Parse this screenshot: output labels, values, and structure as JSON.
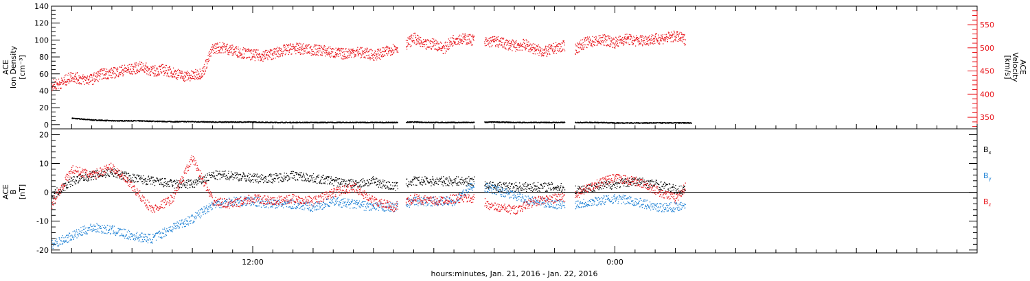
{
  "chart_data": [
    {
      "type": "scatter",
      "panel": "plasma",
      "ylabel_lines": [
        "ACE",
        "Ion Density",
        "[cm⁻³]"
      ],
      "ylim": [
        -5,
        140
      ],
      "yticks": [
        0,
        20,
        40,
        60,
        80,
        100,
        120,
        140
      ],
      "y2label_lines": [
        "ACE",
        "Velocity",
        "[km/s]"
      ],
      "y2lim": [
        325,
        590
      ],
      "y2ticks": [
        350,
        400,
        450,
        500,
        550
      ],
      "y2_color": "#e8141a",
      "series": [
        {
          "key": "density",
          "color": "#000000",
          "axis": "left",
          "x": [
            1,
            2,
            3,
            4,
            5,
            6,
            7,
            8,
            9,
            10,
            11,
            12,
            13,
            14,
            15,
            16,
            17,
            18,
            19,
            20,
            21,
            22,
            23,
            24,
            25,
            26,
            27,
            28,
            29,
            30,
            31,
            32
          ],
          "values": [
            8,
            6,
            5,
            5,
            4.5,
            4,
            4,
            3.5,
            3.5,
            3.5,
            3,
            3,
            3,
            3,
            3,
            3,
            3,
            3.5,
            3,
            3,
            3,
            3.5,
            3,
            3,
            3,
            3,
            3,
            2.5,
            2.5,
            2.5,
            2.5,
            2.5
          ]
        },
        {
          "key": "velocity",
          "color": "#e8141a",
          "axis": "right",
          "x": [
            0,
            0.5,
            1,
            1.5,
            2,
            2.5,
            3,
            3.5,
            4,
            4.5,
            5,
            5.5,
            6,
            6.5,
            7,
            7.5,
            8,
            8.5,
            9,
            9.5,
            10,
            10.5,
            11,
            11.5,
            12,
            12.5,
            13,
            13.5,
            14,
            14.5,
            15,
            15.5,
            16,
            16.5,
            17,
            17.5,
            18,
            18.5,
            19,
            19.5,
            20,
            20.5,
            21,
            21.5,
            22,
            22.5,
            23,
            23.5,
            24,
            24.5,
            25,
            25.5,
            26,
            26.5,
            27,
            27.5,
            28,
            28.5,
            29,
            29.5,
            30,
            30.5,
            31,
            31.5
          ],
          "values": [
            420,
            425,
            440,
            432,
            433,
            445,
            446,
            452,
            455,
            460,
            450,
            454,
            448,
            440,
            440,
            448,
            500,
            502,
            495,
            490,
            485,
            484,
            488,
            495,
            500,
            498,
            496,
            495,
            490,
            488,
            492,
            490,
            485,
            490,
            500,
            505,
            522,
            506,
            510,
            499,
            520,
            520,
            518,
            512,
            515,
            510,
            505,
            508,
            498,
            492,
            500,
            505,
            498,
            512,
            515,
            518,
            512,
            520,
            516,
            518,
            520,
            522,
            526,
            518
          ]
        }
      ],
      "gaps": [
        [
          17.2,
          17.6
        ],
        [
          21.0,
          21.5
        ],
        [
          25.5,
          26.0
        ],
        [
          31.8,
          38
        ]
      ]
    },
    {
      "type": "scatter",
      "panel": "imf",
      "ylabel_lines": [
        "ACE",
        "B",
        "[nT]"
      ],
      "ylim": [
        -21,
        22
      ],
      "yticks": [
        -20,
        -10,
        0,
        10,
        20
      ],
      "zero_line": true,
      "legend": [
        {
          "label": "B",
          "sub": "x",
          "color": "#000000"
        },
        {
          "label": "B",
          "sub": "y",
          "color": "#1a7fd4"
        },
        {
          "label": "B",
          "sub": "z",
          "color": "#e8141a"
        }
      ],
      "series": [
        {
          "key": "bx",
          "color": "#000000",
          "x": [
            0,
            1,
            2,
            3,
            4,
            5,
            6,
            7,
            8,
            9,
            10,
            11,
            12,
            13,
            14,
            15,
            16,
            17,
            18,
            19,
            20,
            21,
            22,
            23,
            24,
            25,
            26,
            27,
            28,
            29,
            30,
            31,
            31.5
          ],
          "values": [
            -1,
            4,
            6,
            7,
            5,
            4,
            3,
            3,
            6,
            6,
            5,
            5,
            6,
            5,
            4,
            3,
            4,
            2,
            4,
            4,
            4,
            4,
            2,
            2,
            2,
            2,
            1,
            2,
            3,
            4,
            3,
            1,
            1
          ]
        },
        {
          "key": "by",
          "color": "#1a7fd4",
          "x": [
            0,
            1,
            2,
            3,
            4,
            5,
            6,
            7,
            8,
            9,
            10,
            11,
            12,
            13,
            14,
            15,
            16,
            17,
            18,
            19,
            20,
            21,
            22,
            23,
            24,
            25,
            26,
            27,
            28,
            29,
            30,
            31,
            31.5
          ],
          "values": [
            -18,
            -15,
            -12,
            -13,
            -15,
            -16,
            -12,
            -9,
            -4,
            -3,
            -3,
            -4,
            -4,
            -5,
            -3,
            -4,
            -5,
            -5,
            -3,
            -3,
            -3,
            3,
            1,
            -1,
            -3,
            -4,
            -4,
            -3,
            -2,
            -3,
            -5,
            -5,
            -4
          ]
        },
        {
          "key": "bz",
          "color": "#e8141a",
          "x": [
            0,
            1,
            2,
            3,
            4,
            5,
            6,
            7,
            8,
            9,
            10,
            11,
            12,
            13,
            14,
            15,
            16,
            17,
            18,
            19,
            20,
            21,
            22,
            23,
            24,
            25,
            26,
            27,
            28,
            29,
            30,
            31,
            31.5
          ],
          "values": [
            -4,
            8,
            6,
            9,
            2,
            -6,
            -2,
            12,
            -3,
            -4,
            -2,
            -3,
            -2,
            -3,
            0,
            2,
            -3,
            -5,
            -2,
            -3,
            -2,
            -2,
            -5,
            -6,
            -3,
            -2,
            -1,
            3,
            5,
            4,
            1,
            -2,
            2
          ]
        }
      ],
      "gaps": [
        [
          17.2,
          17.6
        ],
        [
          21.0,
          21.5
        ],
        [
          25.5,
          26.0
        ],
        [
          31.8,
          38
        ]
      ]
    }
  ],
  "time_axis": {
    "x_range": [
      0,
      46
    ],
    "major_ticks": [
      {
        "x": 10,
        "label": "12:00"
      },
      {
        "x": 28,
        "label": "0:00"
      }
    ],
    "minor_tick_every": 1,
    "xlabel": "hours:minutes, Jan. 21, 2016 - Jan. 22, 2016"
  }
}
